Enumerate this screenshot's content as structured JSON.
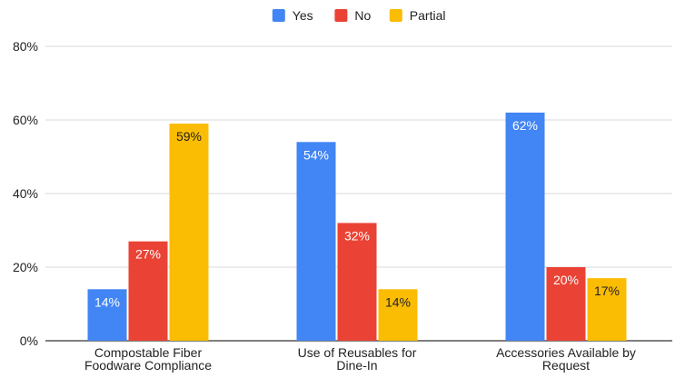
{
  "chart_data": {
    "type": "bar",
    "title": "",
    "xlabel": "",
    "ylabel": "",
    "categories": [
      [
        "Compostable Fiber",
        "Foodware Compliance"
      ],
      [
        "Use of Reusables for",
        "Dine-In"
      ],
      [
        "Accessories Available by",
        "Request"
      ]
    ],
    "series": [
      {
        "name": "Yes",
        "color": "#4285F4",
        "values": [
          14,
          54,
          62
        ],
        "labels": [
          "14%",
          "54%",
          "62%"
        ],
        "label_color": "#ffffff"
      },
      {
        "name": "No",
        "color": "#EA4335",
        "values": [
          27,
          32,
          20
        ],
        "labels": [
          "27%",
          "32%",
          "20%"
        ],
        "label_color": "#ffffff"
      },
      {
        "name": "Partial",
        "color": "#FBBC04",
        "values": [
          59,
          14,
          17
        ],
        "labels": [
          "59%",
          "14%",
          "17%"
        ],
        "label_color": "#222222"
      }
    ],
    "ylim": [
      0,
      80
    ],
    "yticks": [
      0,
      20,
      40,
      60,
      80
    ],
    "ytick_labels": [
      "0%",
      "20%",
      "40%",
      "60%",
      "80%"
    ],
    "grid": true,
    "legend": "top-center"
  }
}
